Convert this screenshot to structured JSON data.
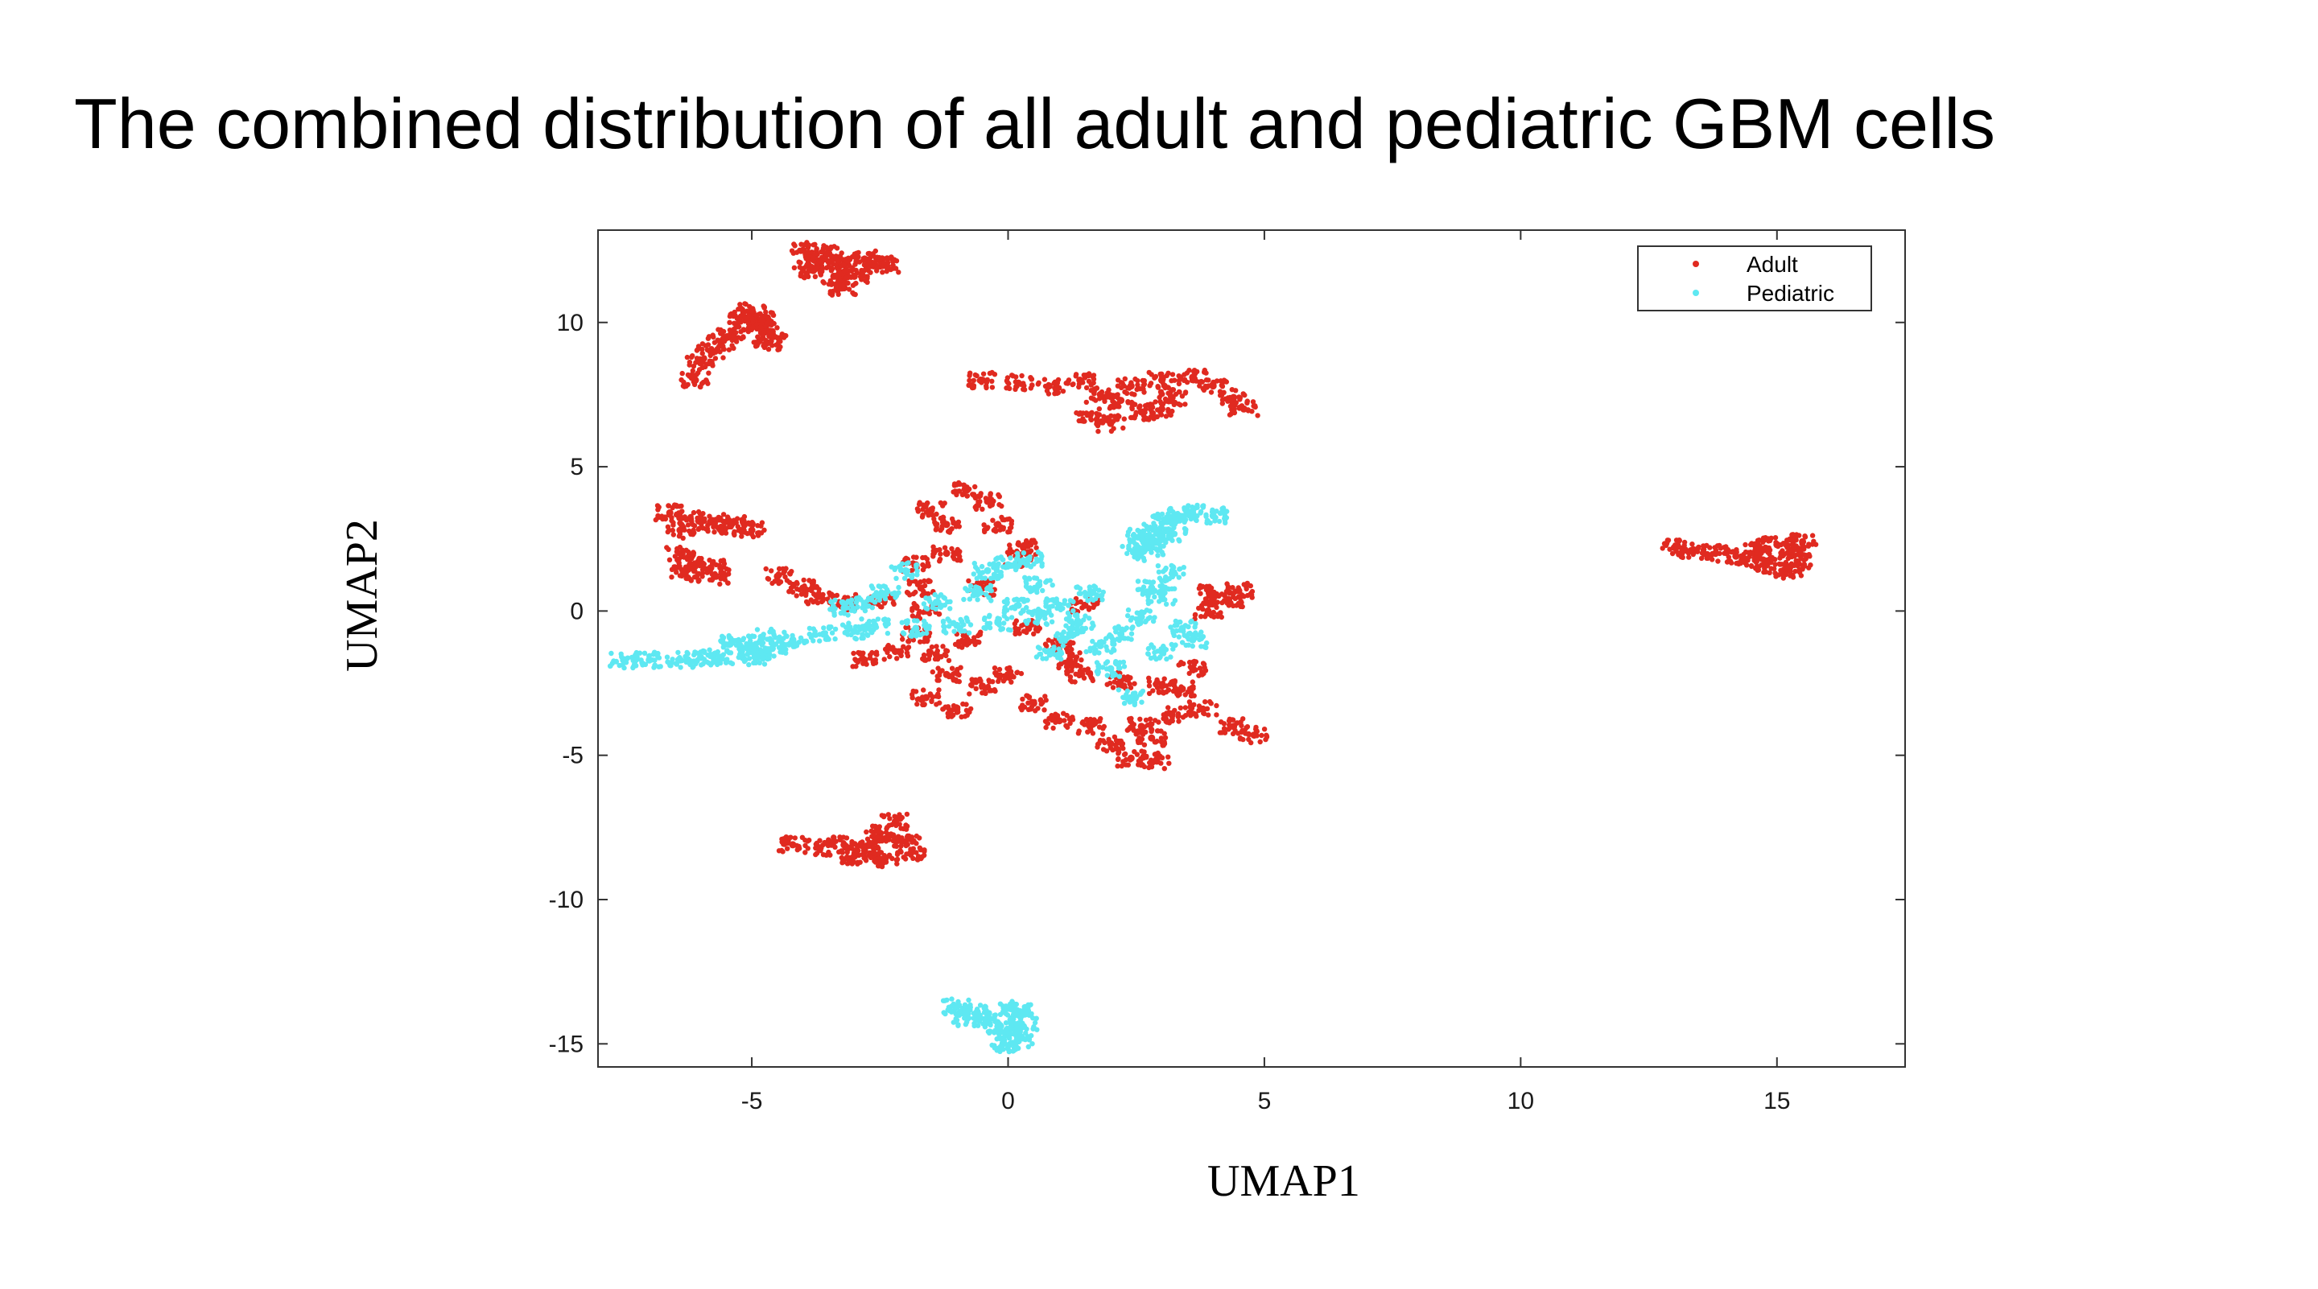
{
  "title": "The combined distribution of all adult and pediatric GBM cells",
  "chart_data": {
    "type": "scatter",
    "xlabel": "UMAP1",
    "ylabel": "UMAP2",
    "xlim": [
      -8,
      17.5
    ],
    "ylim": [
      -15.8,
      13.2
    ],
    "xticks": [
      -5,
      0,
      5,
      10,
      15
    ],
    "yticks": [
      10,
      5,
      0,
      -5,
      -10,
      -15
    ],
    "grid": false,
    "legend_position": "top-right",
    "series": [
      {
        "name": "Adult",
        "color": "#e02a20",
        "clusters": [
          {
            "points": [
              [
                -4.0,
                12.5
              ],
              [
                -3.6,
                12.2
              ],
              [
                -3.2,
                12.0
              ],
              [
                -2.6,
                12.0
              ],
              [
                -2.4,
                12.0
              ],
              [
                -3.8,
                11.8
              ],
              [
                -3.4,
                11.6
              ],
              [
                -3.2,
                11.2
              ],
              [
                -3.0,
                11.6
              ],
              [
                -3.5,
                12.4
              ],
              [
                -2.8,
                12.2
              ],
              [
                -3.9,
                12.0
              ]
            ]
          },
          {
            "points": [
              [
                -5.2,
                10.2
              ],
              [
                -5.0,
                10.0
              ],
              [
                -4.8,
                9.9
              ],
              [
                -4.6,
                9.6
              ],
              [
                -5.4,
                9.6
              ],
              [
                -5.6,
                9.3
              ],
              [
                -5.8,
                9.0
              ],
              [
                -6.0,
                8.6
              ],
              [
                -6.1,
                8.0
              ],
              [
                -4.7,
                9.3
              ],
              [
                -5.0,
                10.4
              ],
              [
                -4.8,
                10.1
              ]
            ]
          },
          {
            "points": [
              [
                -0.5,
                8.0
              ],
              [
                0.2,
                7.9
              ],
              [
                0.8,
                7.8
              ],
              [
                1.4,
                8.0
              ],
              [
                1.8,
                7.5
              ],
              [
                2.2,
                7.3
              ],
              [
                2.6,
                6.9
              ],
              [
                3.0,
                7.0
              ],
              [
                2.4,
                7.8
              ],
              [
                3.0,
                8.0
              ],
              [
                3.6,
                8.1
              ],
              [
                4.0,
                7.8
              ],
              [
                4.4,
                7.4
              ],
              [
                4.6,
                7.0
              ],
              [
                1.6,
                6.8
              ],
              [
                3.2,
                7.4
              ],
              [
                2.0,
                6.5
              ]
            ]
          },
          {
            "points": [
              [
                -6.6,
                3.4
              ],
              [
                -6.2,
                3.2
              ],
              [
                -5.8,
                3.1
              ],
              [
                -5.4,
                3.0
              ],
              [
                -5.0,
                2.8
              ],
              [
                -6.4,
                2.8
              ],
              [
                -6.4,
                2.0
              ],
              [
                -6.2,
                1.6
              ],
              [
                -5.8,
                1.5
              ],
              [
                -5.7,
                1.2
              ],
              [
                -6.3,
                1.3
              ],
              [
                -5.6,
                2.9
              ]
            ]
          },
          {
            "points": [
              [
                13.0,
                2.2
              ],
              [
                13.4,
                2.1
              ],
              [
                13.8,
                2.0
              ],
              [
                14.2,
                1.9
              ],
              [
                14.6,
                2.2
              ],
              [
                15.0,
                2.3
              ],
              [
                15.3,
                2.1
              ],
              [
                15.5,
                2.4
              ],
              [
                14.8,
                1.6
              ],
              [
                15.2,
                1.4
              ],
              [
                14.6,
                1.8
              ],
              [
                15.4,
                1.7
              ]
            ]
          },
          {
            "points": [
              [
                -4.5,
                1.2
              ],
              [
                -4.0,
                0.8
              ],
              [
                -3.7,
                0.5
              ],
              [
                -3.2,
                0.3
              ],
              [
                -2.5,
                0.4
              ],
              [
                -1.8,
                1.6
              ],
              [
                -1.5,
                3.5
              ],
              [
                -1.2,
                3.0
              ],
              [
                -0.8,
                4.2
              ],
              [
                -0.4,
                3.8
              ],
              [
                -0.2,
                3.0
              ],
              [
                0.3,
                2.2
              ],
              [
                -1.6,
                0.0
              ],
              [
                -1.8,
                -0.8
              ],
              [
                -1.4,
                -1.5
              ],
              [
                -1.2,
                -2.2
              ],
              [
                -1.6,
                -3.0
              ],
              [
                -1.0,
                -3.4
              ],
              [
                -0.5,
                -2.6
              ],
              [
                0.0,
                -2.2
              ],
              [
                0.5,
                -3.2
              ],
              [
                1.0,
                -3.8
              ],
              [
                1.6,
                -4.0
              ],
              [
                2.0,
                -4.6
              ],
              [
                2.4,
                -5.1
              ],
              [
                2.9,
                -5.2
              ],
              [
                2.6,
                -4.0
              ],
              [
                3.2,
                -3.6
              ],
              [
                3.6,
                -2.0
              ],
              [
                3.0,
                -2.6
              ],
              [
                2.2,
                -2.4
              ],
              [
                1.4,
                -2.2
              ],
              [
                1.0,
                -1.2
              ],
              [
                0.4,
                -0.6
              ],
              [
                -0.5,
                0.8
              ],
              [
                0.2,
                1.8
              ],
              [
                1.5,
                0.2
              ],
              [
                3.9,
                0.0
              ],
              [
                4.3,
                0.4
              ],
              [
                4.5,
                0.7
              ],
              [
                4.0,
                0.6
              ],
              [
                3.8,
                -3.4
              ],
              [
                4.4,
                -4.0
              ],
              [
                4.8,
                -4.3
              ],
              [
                3.4,
                -2.7
              ],
              [
                -2.8,
                -1.7
              ],
              [
                -2.2,
                -1.4
              ],
              [
                -0.8,
                -1.0
              ],
              [
                -1.2,
                2.0
              ],
              [
                -1.7,
                0.8
              ],
              [
                2.8,
                -4.4
              ],
              [
                1.2,
                -1.7
              ]
            ]
          },
          {
            "points": [
              [
                -4.2,
                -8.1
              ],
              [
                -3.7,
                -8.2
              ],
              [
                -3.2,
                -8.1
              ],
              [
                -2.8,
                -8.3
              ],
              [
                -2.5,
                -7.7
              ],
              [
                -2.2,
                -7.3
              ],
              [
                -2.0,
                -8.0
              ],
              [
                -1.9,
                -8.4
              ],
              [
                -2.4,
                -8.6
              ],
              [
                -3.0,
                -8.5
              ],
              [
                -2.6,
                -8.0
              ]
            ]
          }
        ]
      },
      {
        "name": "Pediatric",
        "color": "#5ee8f2",
        "clusters": [
          {
            "points": [
              [
                -7.5,
                -1.7
              ],
              [
                -7.0,
                -1.7
              ],
              [
                -6.4,
                -1.7
              ],
              [
                -6.0,
                -1.6
              ],
              [
                -5.6,
                -1.6
              ],
              [
                -5.2,
                -1.4
              ],
              [
                -5.0,
                -1.2
              ],
              [
                -4.8,
                -0.9
              ],
              [
                -4.6,
                -1.3
              ],
              [
                -4.2,
                -1.0
              ],
              [
                -3.6,
                -0.8
              ],
              [
                -3.0,
                -0.7
              ],
              [
                -5.4,
                -1.1
              ],
              [
                -4.9,
                -1.6
              ]
            ]
          },
          {
            "points": [
              [
                2.5,
                2.0
              ],
              [
                2.7,
                2.4
              ],
              [
                2.9,
                2.8
              ],
              [
                3.1,
                3.1
              ],
              [
                3.3,
                3.3
              ],
              [
                3.6,
                3.4
              ],
              [
                4.0,
                3.3
              ],
              [
                2.8,
                2.2
              ],
              [
                3.2,
                2.7
              ],
              [
                2.6,
                2.6
              ]
            ]
          },
          {
            "points": [
              [
                -3.2,
                0.1
              ],
              [
                -2.8,
                0.2
              ],
              [
                -2.4,
                0.6
              ],
              [
                -2.0,
                1.4
              ],
              [
                -1.4,
                0.3
              ],
              [
                -1.0,
                -0.5
              ],
              [
                -0.6,
                0.6
              ],
              [
                -0.4,
                1.4
              ],
              [
                0.0,
                1.6
              ],
              [
                0.4,
                1.8
              ],
              [
                0.6,
                0.9
              ],
              [
                1.0,
                0.2
              ],
              [
                1.4,
                -0.4
              ],
              [
                1.8,
                -1.2
              ],
              [
                2.2,
                -0.8
              ],
              [
                2.6,
                -0.2
              ],
              [
                3.0,
                0.5
              ],
              [
                3.2,
                1.3
              ],
              [
                3.4,
                -0.6
              ],
              [
                3.6,
                -1.0
              ],
              [
                2.0,
                -2.0
              ],
              [
                1.2,
                -0.8
              ],
              [
                0.6,
                -0.2
              ],
              [
                0.2,
                0.2
              ],
              [
                -0.2,
                -0.4
              ],
              [
                -1.8,
                -0.6
              ],
              [
                2.4,
                -3.0
              ],
              [
                1.6,
                0.6
              ],
              [
                2.8,
                0.8
              ],
              [
                3.0,
                -1.4
              ],
              [
                -2.6,
                -0.5
              ],
              [
                0.8,
                -1.4
              ]
            ]
          },
          {
            "points": [
              [
                -1.0,
                -13.7
              ],
              [
                -0.6,
                -13.9
              ],
              [
                -0.4,
                -14.2
              ],
              [
                -0.2,
                -14.4
              ],
              [
                0.0,
                -14.6
              ],
              [
                0.2,
                -14.9
              ],
              [
                0.3,
                -14.4
              ],
              [
                0.1,
                -13.8
              ],
              [
                -0.8,
                -14.1
              ],
              [
                -0.1,
                -15.0
              ],
              [
                0.3,
                -13.9
              ]
            ]
          }
        ]
      }
    ]
  }
}
